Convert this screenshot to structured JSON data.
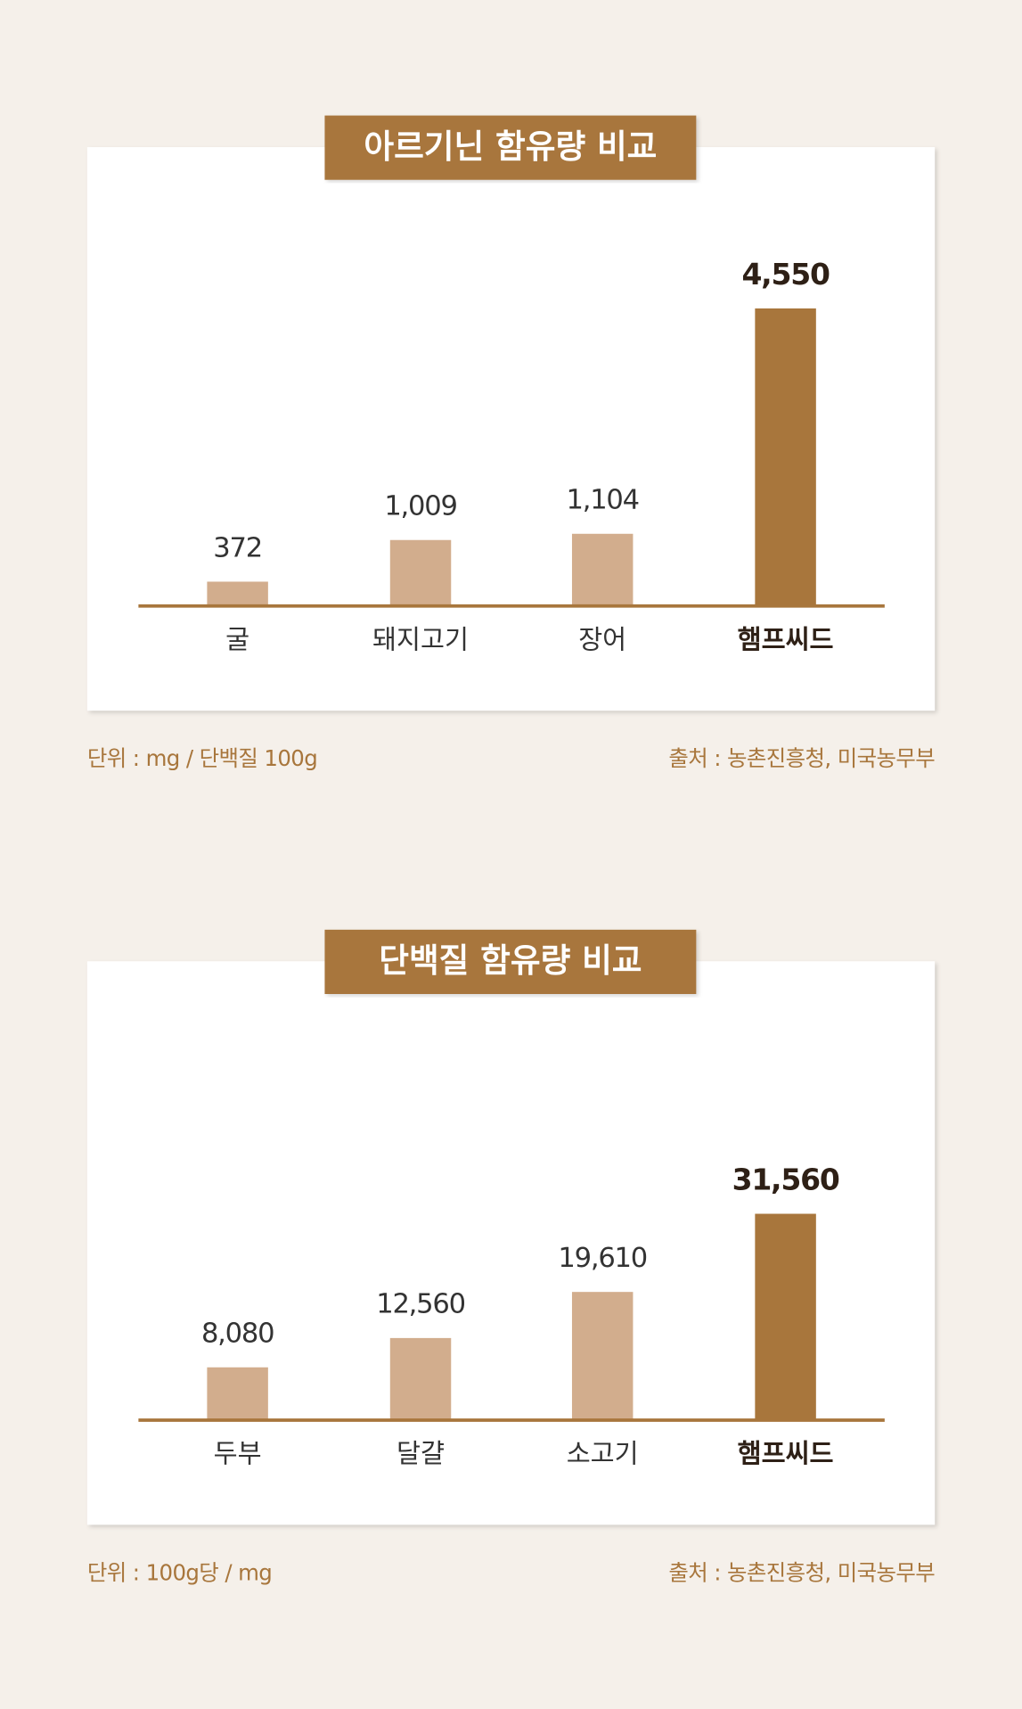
{
  "chart_data": [
    {
      "type": "bar",
      "title": "아르기닌 함유량 비교",
      "categories": [
        "굴",
        "돼지고기",
        "장어",
        "햄프씨드"
      ],
      "values": [
        372,
        1009,
        1104,
        4550
      ],
      "value_labels": [
        "372",
        "1,009",
        "1,104",
        "4,550"
      ],
      "color": "#d2ad8d",
      "highlight": 3,
      "highlight_color": "#a8763c",
      "ylim": [
        0,
        5000
      ],
      "unit": "단위 : mg / 단백질 100g",
      "source": "출처 : 농촌진흥청, 미국농무부"
    },
    {
      "type": "bar",
      "title": "단백질 함유량 비교",
      "categories": [
        "두부",
        "달걀",
        "소고기",
        "햄프씨드"
      ],
      "values": [
        8080,
        12560,
        19610,
        31560
      ],
      "value_labels": [
        "8,080",
        "12,560",
        "19,610",
        "31,560"
      ],
      "color": "#d2ad8d",
      "highlight": 3,
      "highlight_color": "#a8763c",
      "ylim": [
        0,
        50000
      ],
      "unit": "단위 : 100g당 / mg",
      "source": "출처 : 농촌진흥청, 미국농무부"
    }
  ]
}
